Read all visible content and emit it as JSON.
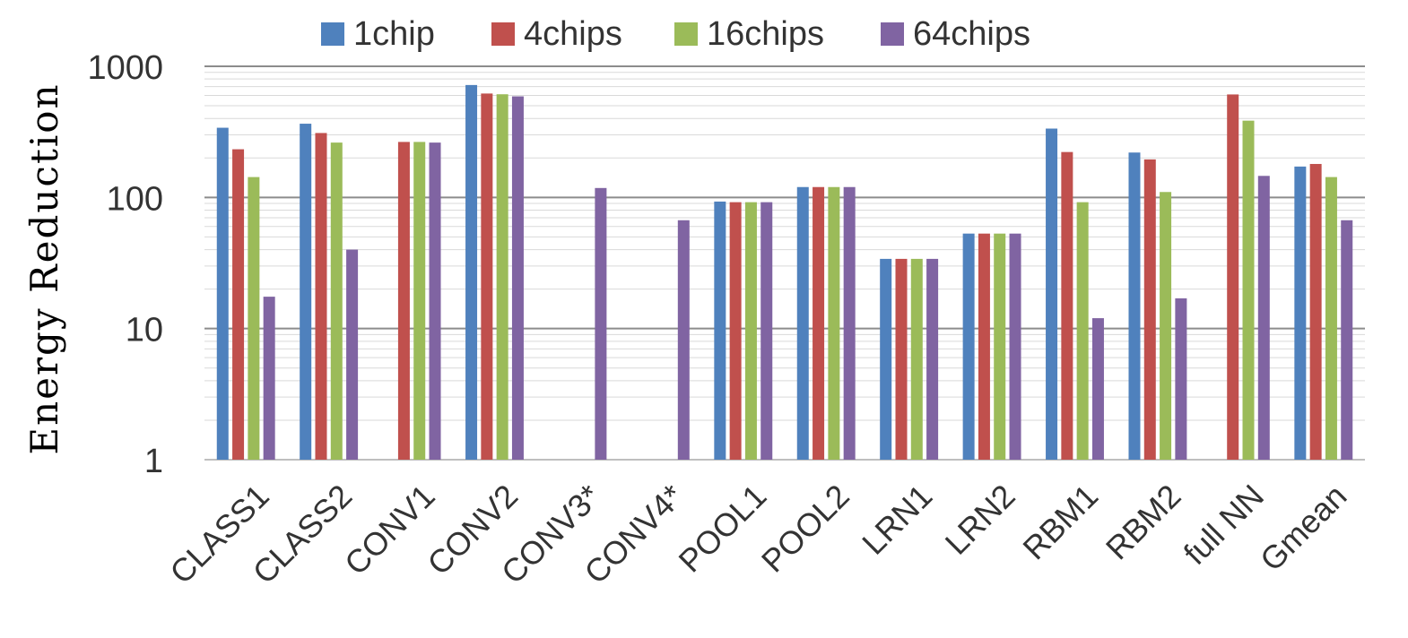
{
  "chart_data": {
    "type": "bar",
    "ylabel": "Energy Reduction",
    "xlabel": "",
    "yscale": "log",
    "ylim": [
      1,
      1000
    ],
    "yticks": [
      "1",
      "10",
      "100",
      "1000"
    ],
    "grid": true,
    "legend_position": "top",
    "categories": [
      "CLASS1",
      "CLASS2",
      "CONV1",
      "CONV2",
      "CONV3*",
      "CONV4*",
      "POOL1",
      "POOL2",
      "LRN1",
      "LRN2",
      "RBM1",
      "RBM2",
      "full NN",
      "Gmean"
    ],
    "series": [
      {
        "name": "1chip",
        "color": "#4f81bd",
        "values": [
          340,
          365,
          null,
          720,
          null,
          null,
          93,
          120,
          34,
          53,
          335,
          220,
          null,
          172
        ]
      },
      {
        "name": "4chips",
        "color": "#c0504d",
        "values": [
          233,
          310,
          265,
          620,
          null,
          null,
          92,
          120,
          34,
          53,
          222,
          195,
          610,
          180
        ]
      },
      {
        "name": "16chips",
        "color": "#9bbb59",
        "values": [
          143,
          262,
          265,
          612,
          null,
          null,
          92,
          120,
          34,
          53,
          92,
          110,
          385,
          143
        ]
      },
      {
        "name": "64chips",
        "color": "#8064a2",
        "values": [
          17.5,
          40,
          262,
          590,
          118,
          67,
          92,
          120,
          34,
          53,
          12,
          17,
          146,
          67
        ]
      }
    ]
  }
}
